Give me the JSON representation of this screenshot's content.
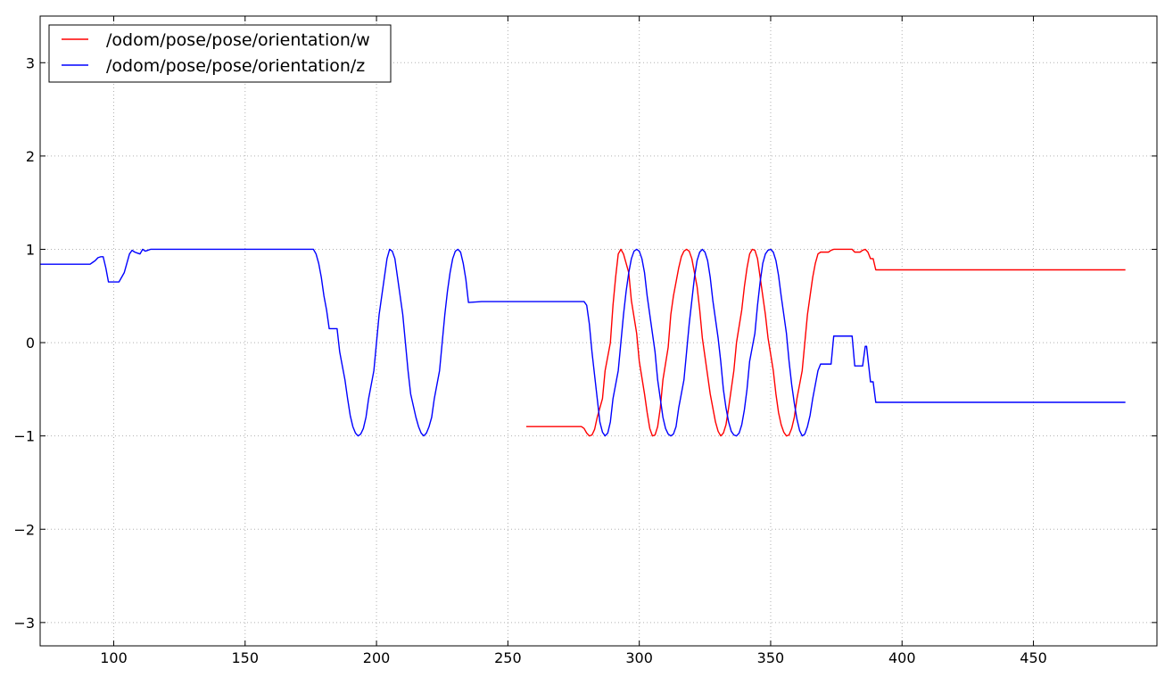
{
  "chart_data": {
    "type": "line",
    "title": "",
    "xlabel": "",
    "ylabel": "",
    "xlim": [
      72,
      497
    ],
    "ylim": [
      -3.25,
      3.5
    ],
    "x_ticks": [
      100,
      150,
      200,
      250,
      300,
      350,
      400,
      450
    ],
    "y_ticks": [
      -3,
      -2,
      -1,
      0,
      1,
      2,
      3
    ],
    "y_tick_labels": [
      "−3",
      "−2",
      "−1",
      "0",
      "1",
      "2",
      "3"
    ],
    "grid": true,
    "legend_position": "top-left",
    "series": [
      {
        "name": "/odom/pose/pose/orientation/w",
        "color": "#ff0000",
        "points": [
          [
            257,
            -0.9
          ],
          [
            278,
            -0.9
          ],
          [
            279,
            -0.92
          ],
          [
            280,
            -0.97
          ],
          [
            281,
            -1.0
          ],
          [
            282,
            -0.99
          ],
          [
            283,
            -0.93
          ],
          [
            284,
            -0.8
          ],
          [
            286,
            -0.6
          ],
          [
            287,
            -0.3
          ],
          [
            289,
            0.0
          ],
          [
            290,
            0.4
          ],
          [
            291,
            0.7
          ],
          [
            292,
            0.95
          ],
          [
            293,
            1.0
          ],
          [
            294,
            0.95
          ],
          [
            296,
            0.75
          ],
          [
            297,
            0.45
          ],
          [
            299,
            0.1
          ],
          [
            300,
            -0.2
          ],
          [
            302,
            -0.55
          ],
          [
            303,
            -0.75
          ],
          [
            304,
            -0.92
          ],
          [
            305,
            -1.0
          ],
          [
            306,
            -0.99
          ],
          [
            307,
            -0.9
          ],
          [
            308,
            -0.7
          ],
          [
            309,
            -0.4
          ],
          [
            311,
            -0.05
          ],
          [
            312,
            0.3
          ],
          [
            313,
            0.5
          ],
          [
            315,
            0.8
          ],
          [
            316,
            0.92
          ],
          [
            317,
            0.98
          ],
          [
            318,
            1.0
          ],
          [
            319,
            0.98
          ],
          [
            320,
            0.9
          ],
          [
            322,
            0.6
          ],
          [
            323,
            0.35
          ],
          [
            324,
            0.05
          ],
          [
            326,
            -0.35
          ],
          [
            327,
            -0.55
          ],
          [
            329,
            -0.85
          ],
          [
            330,
            -0.95
          ],
          [
            331,
            -1.0
          ],
          [
            332,
            -0.97
          ],
          [
            333,
            -0.88
          ],
          [
            334,
            -0.7
          ],
          [
            336,
            -0.3
          ],
          [
            337,
            0.0
          ],
          [
            339,
            0.35
          ],
          [
            340,
            0.6
          ],
          [
            341,
            0.8
          ],
          [
            342,
            0.95
          ],
          [
            343,
            1.0
          ],
          [
            344,
            0.99
          ],
          [
            345,
            0.9
          ],
          [
            346,
            0.7
          ],
          [
            348,
            0.3
          ],
          [
            349,
            0.05
          ],
          [
            351,
            -0.3
          ],
          [
            352,
            -0.55
          ],
          [
            353,
            -0.75
          ],
          [
            354,
            -0.88
          ],
          [
            355,
            -0.96
          ],
          [
            356,
            -1.0
          ],
          [
            357,
            -0.99
          ],
          [
            358,
            -0.92
          ],
          [
            359,
            -0.8
          ],
          [
            360,
            -0.6
          ],
          [
            362,
            -0.3
          ],
          [
            363,
            0.0
          ],
          [
            364,
            0.3
          ],
          [
            365,
            0.5
          ],
          [
            366,
            0.7
          ],
          [
            367,
            0.85
          ],
          [
            368,
            0.95
          ],
          [
            369,
            0.97
          ],
          [
            372,
            0.97
          ],
          [
            373,
            0.99
          ],
          [
            374,
            1.0
          ],
          [
            381,
            1.0
          ],
          [
            382,
            0.97
          ],
          [
            384,
            0.97
          ],
          [
            385,
            0.99
          ],
          [
            386,
            1.0
          ],
          [
            387,
            0.97
          ],
          [
            388,
            0.9
          ],
          [
            389,
            0.9
          ],
          [
            390,
            0.78
          ],
          [
            485,
            0.78
          ]
        ]
      },
      {
        "name": "/odom/pose/pose/orientation/z",
        "color": "#0000ff",
        "points": [
          [
            72,
            0.84
          ],
          [
            91,
            0.84
          ],
          [
            92,
            0.86
          ],
          [
            93,
            0.88
          ],
          [
            94,
            0.91
          ],
          [
            95,
            0.92
          ],
          [
            96,
            0.92
          ],
          [
            97,
            0.8
          ],
          [
            98,
            0.65
          ],
          [
            102,
            0.65
          ],
          [
            103,
            0.7
          ],
          [
            104,
            0.75
          ],
          [
            105,
            0.85
          ],
          [
            106,
            0.95
          ],
          [
            107,
            0.99
          ],
          [
            108,
            0.97
          ],
          [
            109,
            0.96
          ],
          [
            110,
            0.95
          ],
          [
            111,
            1.0
          ],
          [
            112,
            0.98
          ],
          [
            113,
            0.99
          ],
          [
            114,
            1.0
          ],
          [
            175,
            1.0
          ],
          [
            176,
            1.0
          ],
          [
            177,
            0.95
          ],
          [
            178,
            0.85
          ],
          [
            179,
            0.7
          ],
          [
            180,
            0.5
          ],
          [
            181,
            0.35
          ],
          [
            182,
            0.15
          ],
          [
            185,
            0.15
          ],
          [
            186,
            -0.1
          ],
          [
            187,
            -0.25
          ],
          [
            188,
            -0.4
          ],
          [
            189,
            -0.6
          ],
          [
            190,
            -0.78
          ],
          [
            191,
            -0.9
          ],
          [
            192,
            -0.97
          ],
          [
            193,
            -1.0
          ],
          [
            194,
            -0.98
          ],
          [
            195,
            -0.92
          ],
          [
            196,
            -0.8
          ],
          [
            197,
            -0.6
          ],
          [
            199,
            -0.3
          ],
          [
            200,
            0.0
          ],
          [
            201,
            0.3
          ],
          [
            203,
            0.7
          ],
          [
            204,
            0.9
          ],
          [
            205,
            1.0
          ],
          [
            206,
            0.98
          ],
          [
            207,
            0.9
          ],
          [
            208,
            0.7
          ],
          [
            210,
            0.3
          ],
          [
            211,
            0.0
          ],
          [
            212,
            -0.3
          ],
          [
            213,
            -0.55
          ],
          [
            215,
            -0.8
          ],
          [
            216,
            -0.9
          ],
          [
            217,
            -0.97
          ],
          [
            218,
            -1.0
          ],
          [
            219,
            -0.97
          ],
          [
            220,
            -0.9
          ],
          [
            221,
            -0.8
          ],
          [
            222,
            -0.6
          ],
          [
            224,
            -0.3
          ],
          [
            225,
            0.0
          ],
          [
            226,
            0.3
          ],
          [
            227,
            0.55
          ],
          [
            228,
            0.75
          ],
          [
            229,
            0.9
          ],
          [
            230,
            0.98
          ],
          [
            231,
            1.0
          ],
          [
            232,
            0.97
          ],
          [
            233,
            0.85
          ],
          [
            234,
            0.68
          ],
          [
            235,
            0.43
          ],
          [
            240,
            0.44
          ],
          [
            279,
            0.44
          ],
          [
            280,
            0.4
          ],
          [
            281,
            0.2
          ],
          [
            282,
            -0.1
          ],
          [
            283,
            -0.35
          ],
          [
            284,
            -0.6
          ],
          [
            285,
            -0.85
          ],
          [
            286,
            -0.96
          ],
          [
            287,
            -1.0
          ],
          [
            288,
            -0.97
          ],
          [
            289,
            -0.85
          ],
          [
            290,
            -0.6
          ],
          [
            292,
            -0.3
          ],
          [
            293,
            0.0
          ],
          [
            294,
            0.3
          ],
          [
            295,
            0.55
          ],
          [
            296,
            0.75
          ],
          [
            297,
            0.9
          ],
          [
            298,
            0.98
          ],
          [
            299,
            1.0
          ],
          [
            300,
            0.98
          ],
          [
            301,
            0.9
          ],
          [
            302,
            0.75
          ],
          [
            303,
            0.5
          ],
          [
            305,
            0.1
          ],
          [
            306,
            -0.1
          ],
          [
            307,
            -0.4
          ],
          [
            308,
            -0.6
          ],
          [
            309,
            -0.8
          ],
          [
            310,
            -0.92
          ],
          [
            311,
            -0.98
          ],
          [
            312,
            -1.0
          ],
          [
            313,
            -0.98
          ],
          [
            314,
            -0.9
          ],
          [
            315,
            -0.7
          ],
          [
            317,
            -0.4
          ],
          [
            318,
            -0.1
          ],
          [
            319,
            0.2
          ],
          [
            320,
            0.45
          ],
          [
            321,
            0.7
          ],
          [
            322,
            0.88
          ],
          [
            323,
            0.97
          ],
          [
            324,
            1.0
          ],
          [
            325,
            0.97
          ],
          [
            326,
            0.88
          ],
          [
            327,
            0.7
          ],
          [
            328,
            0.45
          ],
          [
            330,
            0.05
          ],
          [
            331,
            -0.2
          ],
          [
            332,
            -0.5
          ],
          [
            333,
            -0.7
          ],
          [
            334,
            -0.85
          ],
          [
            335,
            -0.95
          ],
          [
            336,
            -0.99
          ],
          [
            337,
            -1.0
          ],
          [
            338,
            -0.97
          ],
          [
            339,
            -0.88
          ],
          [
            340,
            -0.72
          ],
          [
            341,
            -0.5
          ],
          [
            342,
            -0.2
          ],
          [
            344,
            0.1
          ],
          [
            345,
            0.4
          ],
          [
            346,
            0.65
          ],
          [
            347,
            0.85
          ],
          [
            348,
            0.95
          ],
          [
            349,
            0.99
          ],
          [
            350,
            1.0
          ],
          [
            351,
            0.97
          ],
          [
            352,
            0.88
          ],
          [
            353,
            0.72
          ],
          [
            354,
            0.5
          ],
          [
            356,
            0.1
          ],
          [
            357,
            -0.2
          ],
          [
            358,
            -0.45
          ],
          [
            359,
            -0.65
          ],
          [
            360,
            -0.82
          ],
          [
            361,
            -0.94
          ],
          [
            362,
            -1.0
          ],
          [
            363,
            -0.98
          ],
          [
            364,
            -0.9
          ],
          [
            365,
            -0.78
          ],
          [
            366,
            -0.6
          ],
          [
            367,
            -0.45
          ],
          [
            368,
            -0.3
          ],
          [
            369,
            -0.23
          ],
          [
            372,
            -0.23
          ],
          [
            373,
            -0.23
          ],
          [
            374,
            0.07
          ],
          [
            375,
            0.07
          ],
          [
            381,
            0.07
          ],
          [
            382,
            -0.25
          ],
          [
            384,
            -0.25
          ],
          [
            385,
            -0.25
          ],
          [
            386,
            -0.04
          ],
          [
            386.5,
            -0.04
          ],
          [
            387,
            -0.17
          ],
          [
            388,
            -0.42
          ],
          [
            389,
            -0.42
          ],
          [
            390,
            -0.64
          ],
          [
            485,
            -0.64
          ]
        ]
      }
    ]
  }
}
